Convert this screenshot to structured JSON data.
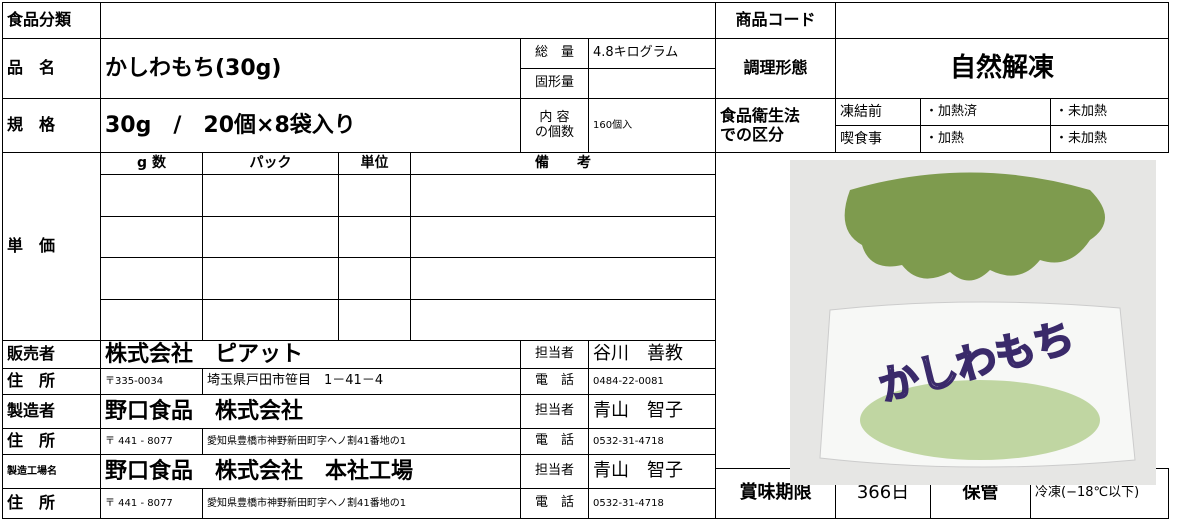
{
  "food_category": {
    "label": "食品分類"
  },
  "product_code": {
    "label": "商品コード"
  },
  "product_name": {
    "label": "品　名",
    "value": "かしわもち(30g)"
  },
  "total_weight": {
    "label": "総　量",
    "value": "4.8キログラム"
  },
  "solid_weight": {
    "label": "固形量"
  },
  "cooking": {
    "label": "調理形態",
    "value": "自然解凍"
  },
  "spec": {
    "label": "規　格",
    "value": "30g　/　20個×8袋入り"
  },
  "contents": {
    "label": [
      "内 容",
      "の個数"
    ],
    "value": "160個入"
  },
  "hygiene": {
    "label": [
      "食品衛生法",
      "での区分"
    ],
    "rows": [
      [
        "凍結前",
        "・加熱済",
        "・未加熱"
      ],
      [
        "喫食事",
        "・加熱",
        "・未加熱"
      ]
    ]
  },
  "unit_price": {
    "label": "単　価",
    "headers": [
      "g 数",
      "パック",
      "単位",
      "備　　考"
    ]
  },
  "seller": {
    "label": "販売者",
    "value": "株式会社　ピアット",
    "contact_label": "担当者",
    "contact": "谷川　善教"
  },
  "seller_address": {
    "label": "住　所",
    "zip": "〒335-0034",
    "address": "埼玉県戸田市笹目　1－41－4",
    "phone_label": "電　話",
    "phone": "0484-22-0081"
  },
  "manufacturer": {
    "label": "製造者",
    "value": "野口食品　株式会社",
    "contact_label": "担当者",
    "contact": "青山　智子"
  },
  "manufacturer_address": {
    "label": "住　所",
    "zip": "〒 441 - 8077",
    "address": "愛知県豊橋市神野新田町字ヘノ割41番地の1",
    "phone_label": "電　話",
    "phone": "0532-31-4718"
  },
  "factory": {
    "label": "製造工場名",
    "value": "野口食品　株式会社　本社工場",
    "contact_label": "担当者",
    "contact": "青山　智子"
  },
  "factory_address": {
    "label": "住　所",
    "zip": "〒 441 - 8077",
    "address": "愛知県豊橋市神野新田町字ヘノ割41番地の1",
    "phone_label": "電　話",
    "phone": "0532-31-4718"
  },
  "shelf_life": {
    "label": "賞味期限",
    "value": "366日"
  },
  "storage": {
    "label": "保管",
    "value": "冷凍(−18℃以下)"
  },
  "photo": {
    "text": "かしわもち"
  }
}
